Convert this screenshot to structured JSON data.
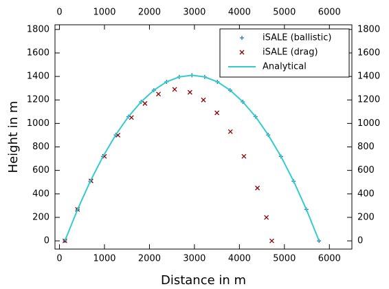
{
  "chart_data": {
    "type": "scatter",
    "x_label": "Distance in m",
    "y_label": "Height in m",
    "xlim": [
      -100,
      6500
    ],
    "ylim": [
      -70,
      1840
    ],
    "xticks": [
      0,
      1000,
      2000,
      3000,
      4000,
      5000,
      6000
    ],
    "yticks": [
      0,
      200,
      400,
      600,
      800,
      1000,
      1200,
      1400,
      1600,
      1800
    ],
    "legend": "upper right",
    "series": [
      {
        "name": "iSALE (ballistic)",
        "color": "#1f78b4",
        "marker": "+",
        "x": [
          120,
          403,
          685,
          968,
          1250,
          1533,
          1815,
          2098,
          2380,
          2663,
          2945,
          3228,
          3510,
          3793,
          4075,
          4358,
          4640,
          4923,
          5205,
          5488,
          5770
        ],
        "values": [
          0,
          268,
          508,
          719,
          902,
          1058,
          1184,
          1283,
          1354,
          1396,
          1410,
          1396,
          1354,
          1283,
          1184,
          1058,
          902,
          719,
          508,
          268,
          0
        ]
      },
      {
        "name": "iSALE (drag)",
        "color": "#8b0000",
        "marker": "x",
        "x": [
          120,
          400,
          700,
          1000,
          1300,
          1600,
          1900,
          2200,
          2560,
          2900,
          3200,
          3500,
          3800,
          4100,
          4400,
          4600,
          4720
        ],
        "values": [
          0,
          268,
          510,
          720,
          900,
          1050,
          1170,
          1250,
          1290,
          1265,
          1200,
          1090,
          930,
          720,
          450,
          200,
          0
        ]
      },
      {
        "name": "Analytical",
        "color": "#33cccc",
        "marker": "line",
        "x": [
          120,
          403,
          685,
          968,
          1250,
          1533,
          1815,
          2098,
          2380,
          2663,
          2945,
          3228,
          3510,
          3793,
          4075,
          4358,
          4640,
          4923,
          5205,
          5488,
          5770
        ],
        "values": [
          0,
          268,
          508,
          719,
          902,
          1058,
          1184,
          1283,
          1354,
          1396,
          1410,
          1396,
          1354,
          1283,
          1184,
          1058,
          902,
          719,
          508,
          268,
          0
        ]
      }
    ]
  }
}
